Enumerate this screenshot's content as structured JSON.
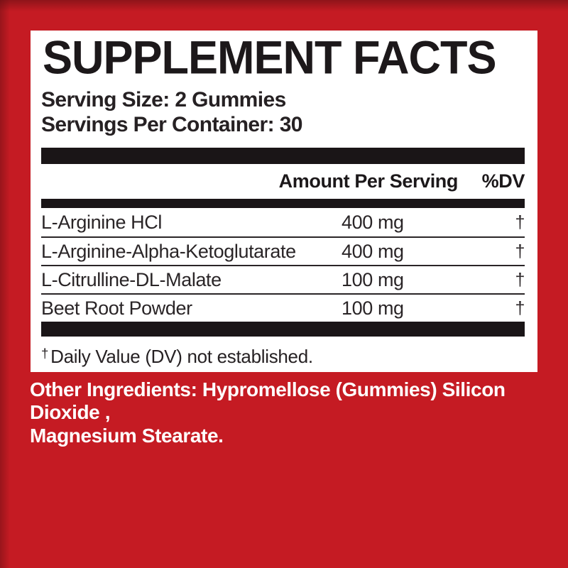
{
  "colors": {
    "background_red": "#c51b23",
    "bar_black": "#1a1517",
    "panel_white": "#ffffff"
  },
  "label": {
    "title": "SUPPLEMENT FACTS",
    "serving_size": "Serving Size: 2 Gummies",
    "servings_per_container": "Servings Per Container: 30",
    "columns": {
      "amount": "Amount Per Serving",
      "dv": "%DV"
    },
    "rows": [
      {
        "name": "L-Arginine HCl",
        "amount": "400 mg",
        "dv": "†"
      },
      {
        "name": "L-Arginine-Alpha-Ketoglutarate",
        "amount": "400 mg",
        "dv": "†"
      },
      {
        "name": "L-Citrulline-DL-Malate",
        "amount": "100 mg",
        "dv": "†"
      },
      {
        "name": "Beet Root Powder",
        "amount": "100 mg",
        "dv": "†"
      }
    ],
    "footnote_symbol": "†",
    "footnote_text": "Daily Value (DV) not established."
  },
  "other_ingredients": {
    "lines": [
      "Other Ingredients: Hypromellose (Gummies) Silicon Dioxide ,",
      "Magnesium Stearate."
    ]
  }
}
